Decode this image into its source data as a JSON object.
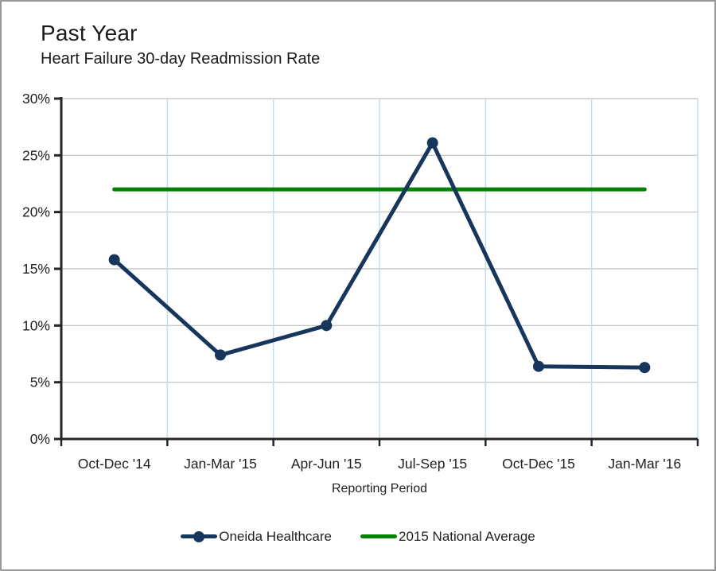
{
  "page": {
    "title": "Past Year",
    "subtitle": "Heart Failure 30-day Readmission Rate"
  },
  "chart_data": {
    "type": "line",
    "title": "Past Year",
    "subtitle": "Heart Failure 30-day Readmission Rate",
    "categories": [
      "Oct-Dec '14",
      "Jan-Mar '15",
      "Apr-Jun '15",
      "Jul-Sep '15",
      "Oct-Dec '15",
      "Jan-Mar '16"
    ],
    "series": [
      {
        "name": "Oneida Healthcare",
        "values": [
          15.8,
          7.4,
          10.0,
          26.1,
          6.4,
          6.3
        ],
        "color": "#16365C",
        "marker": "circle"
      },
      {
        "name": "2015 National Average",
        "values": [
          22.0,
          22.0,
          22.0,
          22.0,
          22.0,
          22.0
        ],
        "color": "#048204",
        "marker": "none"
      }
    ],
    "xlabel": "Reporting Period",
    "ylabel": "",
    "ylim": [
      0,
      30
    ],
    "ytick_step": 5,
    "yticks": [
      "0%",
      "5%",
      "10%",
      "15%",
      "20%",
      "25%",
      "30%"
    ],
    "ytick_format": "percent",
    "grid": {
      "horizontal": true,
      "vertical": true
    },
    "legend_position": "bottom"
  },
  "colors": {
    "navy": "#16365C",
    "green": "#048204",
    "grid_horizontal": "#BFBFBF",
    "grid_vertical": "#C7DBF2",
    "axis": "#262626",
    "text": "#1F1F1F",
    "frame_border": "#999999"
  }
}
